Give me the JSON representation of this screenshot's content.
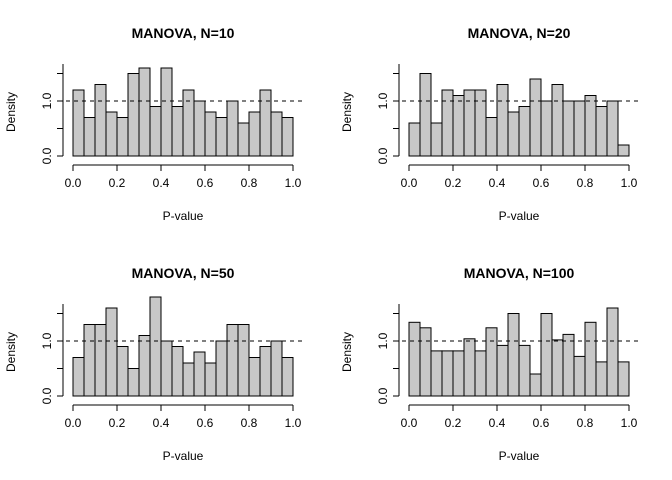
{
  "chart_data": [
    {
      "type": "bar",
      "title": "MANOVA, N=10",
      "xlabel": "P-value",
      "ylabel": "Density",
      "bin_width": 0.05,
      "x_ticks": [
        "0.0",
        "0.2",
        "0.4",
        "0.6",
        "0.8",
        "1.0"
      ],
      "y_ticks": [
        "0.0",
        "1.0"
      ],
      "xlim": [
        0,
        1
      ],
      "ylim": [
        0,
        1.6
      ],
      "reference_line": 1.0,
      "values": [
        1.2,
        0.7,
        1.3,
        0.8,
        0.7,
        1.5,
        1.6,
        0.9,
        1.6,
        0.9,
        1.2,
        1.0,
        0.8,
        0.7,
        1.0,
        0.6,
        0.8,
        1.2,
        0.8,
        0.7
      ]
    },
    {
      "type": "bar",
      "title": "MANOVA, N=20",
      "xlabel": "P-value",
      "ylabel": "Density",
      "bin_width": 0.05,
      "x_ticks": [
        "0.0",
        "0.2",
        "0.4",
        "0.6",
        "0.8",
        "1.0"
      ],
      "y_ticks": [
        "0.0",
        "1.0"
      ],
      "xlim": [
        0,
        1
      ],
      "ylim": [
        0,
        1.6
      ],
      "reference_line": 1.0,
      "values": [
        0.6,
        1.5,
        0.6,
        1.2,
        1.1,
        1.2,
        1.2,
        0.7,
        1.3,
        0.8,
        0.9,
        1.4,
        1.0,
        1.3,
        1.0,
        1.0,
        1.1,
        0.9,
        1.0,
        0.2
      ]
    },
    {
      "type": "bar",
      "title": "MANOVA, N=50",
      "xlabel": "P-value",
      "ylabel": "Density",
      "bin_width": 0.05,
      "x_ticks": [
        "0.0",
        "0.2",
        "0.4",
        "0.6",
        "0.8",
        "1.0"
      ],
      "y_ticks": [
        "0.0",
        "1.0"
      ],
      "xlim": [
        0,
        1
      ],
      "ylim": [
        0,
        1.6
      ],
      "reference_line": 1.0,
      "values": [
        0.7,
        1.3,
        1.3,
        1.6,
        0.9,
        0.5,
        1.1,
        1.8,
        1.0,
        0.9,
        0.6,
        0.8,
        0.6,
        1.0,
        1.3,
        1.3,
        0.7,
        0.9,
        1.0,
        0.7
      ]
    },
    {
      "type": "bar",
      "title": "MANOVA, N=100",
      "xlabel": "P-value",
      "ylabel": "Density",
      "bin_width": 0.05,
      "x_ticks": [
        "0.0",
        "0.2",
        "0.4",
        "0.6",
        "0.8",
        "1.0"
      ],
      "y_ticks": [
        "0.0",
        "1.0"
      ],
      "xlim": [
        0,
        1
      ],
      "ylim": [
        0,
        1.6
      ],
      "reference_line": 1.0,
      "values": [
        1.34,
        1.24,
        0.82,
        0.82,
        0.82,
        1.04,
        0.82,
        1.24,
        0.92,
        1.5,
        0.92,
        0.4,
        1.5,
        1.02,
        1.12,
        0.72,
        1.34,
        0.62,
        1.6,
        0.62
      ]
    }
  ]
}
